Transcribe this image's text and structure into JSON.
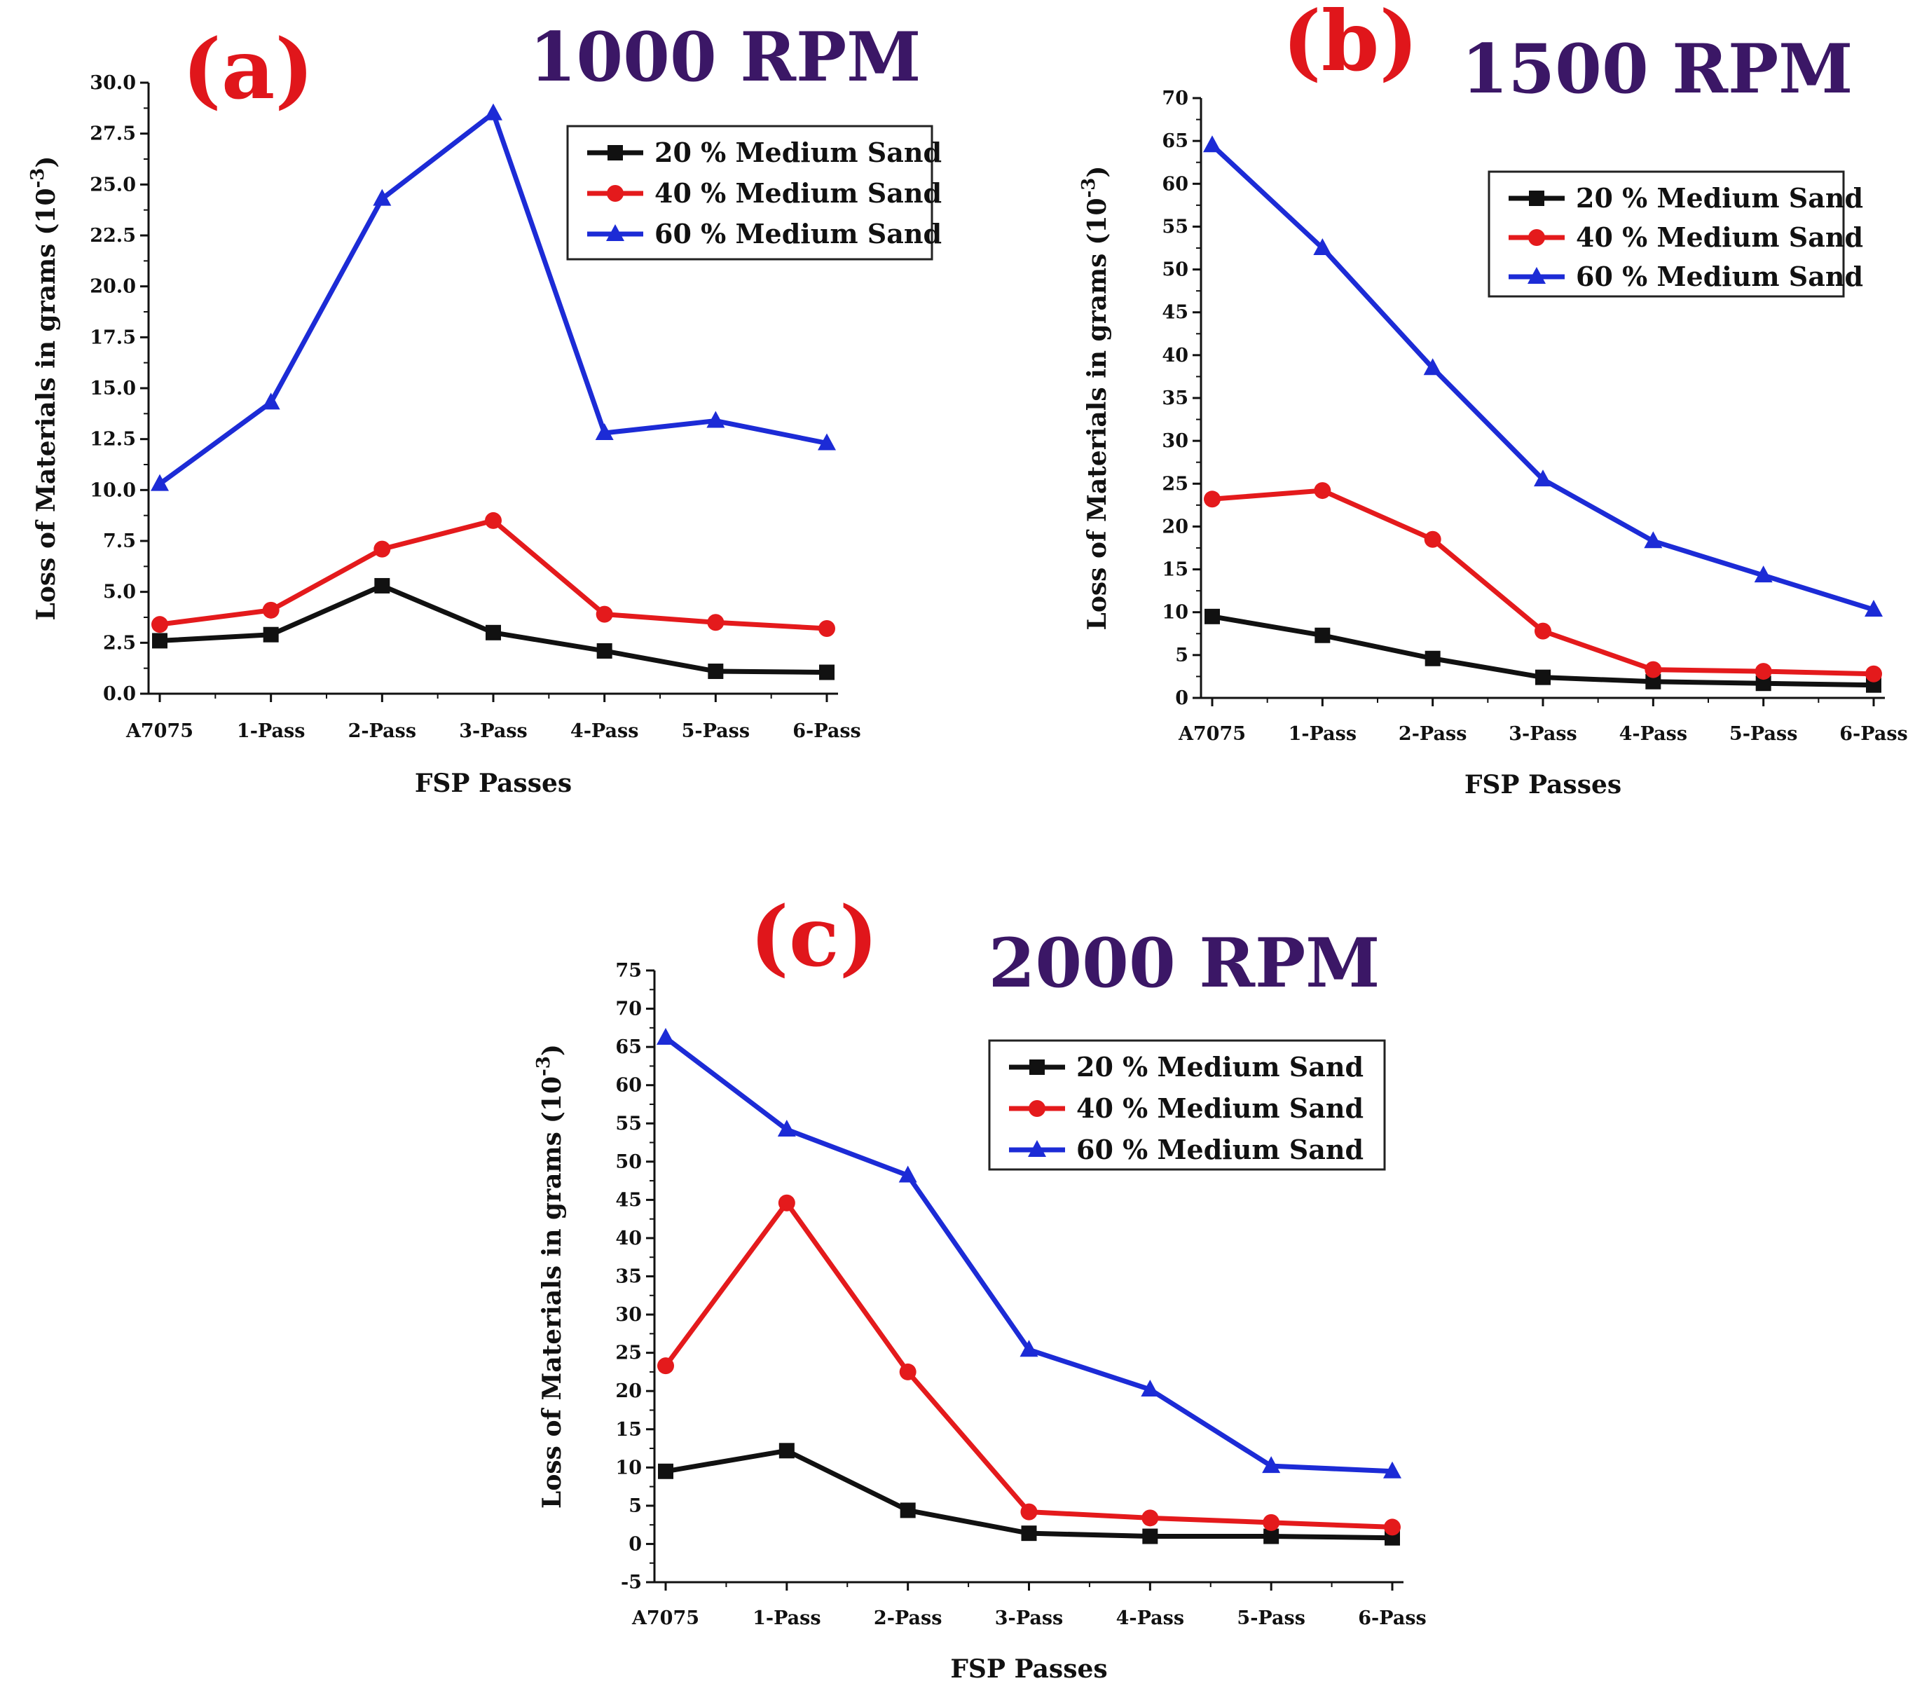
{
  "colors": {
    "black": "#111111",
    "red": "#e41a1c",
    "blue": "#1c2bd6",
    "tag": "#e0161b",
    "rpm": "#3b1766"
  },
  "chart_data": [
    {
      "type": "line",
      "panel_tag": "(a)",
      "title": "1000 RPM",
      "xlabel": "FSP Passes",
      "ylabel_main": "Loss of Materials in grams",
      "ylabel_unit": "(10",
      "ylabel_exp": "-3",
      "ylabel_close": ")",
      "categories": [
        "A7075",
        "1-Pass",
        "2-Pass",
        "3-Pass",
        "4-Pass",
        "5-Pass",
        "6-Pass"
      ],
      "ylim": [
        0,
        30
      ],
      "yticks": [
        0,
        2.5,
        5,
        7.5,
        10,
        12.5,
        15,
        17.5,
        20,
        22.5,
        25,
        27.5,
        30
      ],
      "ytick_decimals": 1,
      "legend_position": "top-right",
      "series": [
        {
          "name": "20 % Medium Sand",
          "color": "#111111",
          "marker": "square",
          "values": [
            2.6,
            2.9,
            5.3,
            3.0,
            2.1,
            1.1,
            1.05
          ]
        },
        {
          "name": "40 % Medium Sand",
          "color": "#e41a1c",
          "marker": "circle",
          "values": [
            3.4,
            4.1,
            7.1,
            8.5,
            3.9,
            3.5,
            3.2
          ]
        },
        {
          "name": "60 % Medium Sand",
          "color": "#1c2bd6",
          "marker": "triangle",
          "values": [
            10.3,
            14.3,
            24.3,
            28.5,
            12.8,
            13.4,
            12.3
          ]
        }
      ]
    },
    {
      "type": "line",
      "panel_tag": "(b)",
      "title": "1500 RPM",
      "xlabel": "FSP Passes",
      "ylabel_main": "Loss of Materials in grams",
      "ylabel_unit": "(10",
      "ylabel_exp": "-3",
      "ylabel_close": ")",
      "categories": [
        "A7075",
        "1-Pass",
        "2-Pass",
        "3-Pass",
        "4-Pass",
        "5-Pass",
        "6-Pass"
      ],
      "ylim": [
        0,
        70
      ],
      "yticks": [
        0,
        5,
        10,
        15,
        20,
        25,
        30,
        35,
        40,
        45,
        50,
        55,
        60,
        65,
        70
      ],
      "ytick_decimals": 0,
      "legend_position": "top-right",
      "series": [
        {
          "name": "20 % Medium Sand",
          "color": "#111111",
          "marker": "square",
          "values": [
            9.5,
            7.3,
            4.6,
            2.4,
            1.9,
            1.7,
            1.5
          ]
        },
        {
          "name": "40 % Medium Sand",
          "color": "#e41a1c",
          "marker": "circle",
          "values": [
            23.2,
            24.2,
            18.5,
            7.8,
            3.3,
            3.1,
            2.8
          ]
        },
        {
          "name": "60 % Medium Sand",
          "color": "#1c2bd6",
          "marker": "triangle",
          "values": [
            64.5,
            52.5,
            38.5,
            25.5,
            18.3,
            14.3,
            10.3
          ]
        }
      ]
    },
    {
      "type": "line",
      "panel_tag": "(c)",
      "title": "2000 RPM",
      "xlabel": "FSP Passes",
      "ylabel_main": "Loss of Materials in grams",
      "ylabel_unit": "(10",
      "ylabel_exp": "-3",
      "ylabel_close": ")",
      "categories": [
        "A7075",
        "1-Pass",
        "2-Pass",
        "3-Pass",
        "4-Pass",
        "5-Pass",
        "6-Pass"
      ],
      "ylim": [
        -5,
        75
      ],
      "yticks": [
        -5,
        0,
        5,
        10,
        15,
        20,
        25,
        30,
        35,
        40,
        45,
        50,
        55,
        60,
        65,
        70,
        75
      ],
      "ytick_decimals": 0,
      "legend_position": "top-right",
      "series": [
        {
          "name": "20 % Medium Sand",
          "color": "#111111",
          "marker": "square",
          "values": [
            9.5,
            12.2,
            4.4,
            1.4,
            1.0,
            1.0,
            0.8
          ]
        },
        {
          "name": "40 % Medium Sand",
          "color": "#e41a1c",
          "marker": "circle",
          "values": [
            23.3,
            44.6,
            22.5,
            4.2,
            3.4,
            2.8,
            2.2
          ]
        },
        {
          "name": "60 % Medium Sand",
          "color": "#1c2bd6",
          "marker": "triangle",
          "values": [
            66.2,
            54.2,
            48.2,
            25.4,
            20.2,
            10.2,
            9.5
          ]
        }
      ]
    }
  ]
}
